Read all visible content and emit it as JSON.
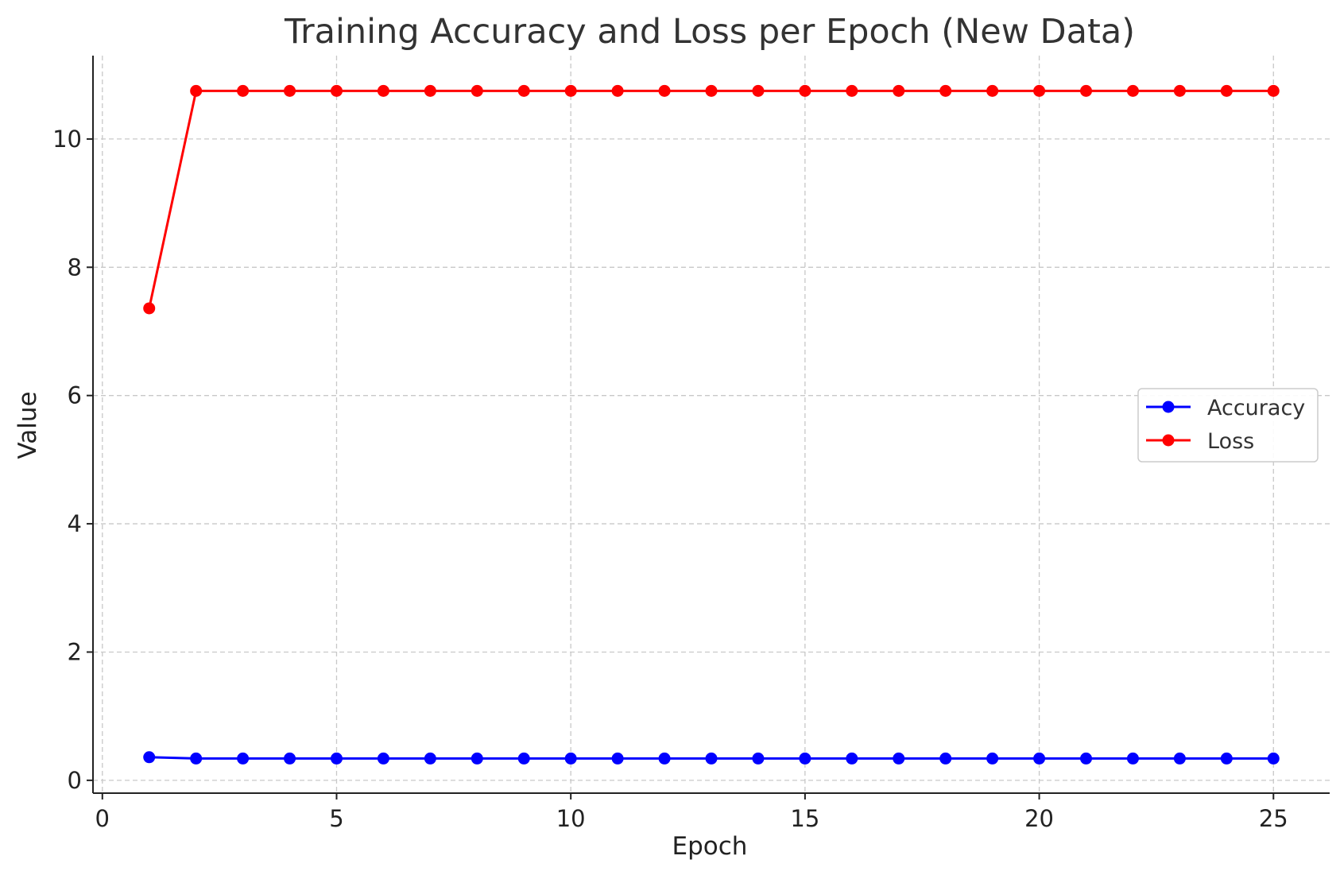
{
  "chart_data": {
    "type": "line",
    "title": "Training Accuracy and Loss per Epoch (New Data)",
    "xlabel": "Epoch",
    "ylabel": "Value",
    "xlim": [
      -0.2,
      26.2
    ],
    "ylim": [
      -0.2,
      11.3
    ],
    "xticks": [
      0,
      5,
      10,
      15,
      20,
      25
    ],
    "yticks": [
      0,
      2,
      4,
      6,
      8,
      10
    ],
    "grid": true,
    "legend_position": "center-right",
    "x": [
      1,
      2,
      3,
      4,
      5,
      6,
      7,
      8,
      9,
      10,
      11,
      12,
      13,
      14,
      15,
      16,
      17,
      18,
      19,
      20,
      21,
      22,
      23,
      24,
      25
    ],
    "series": [
      {
        "name": "Accuracy",
        "color": "#0000ff",
        "values": [
          0.36,
          0.34,
          0.34,
          0.34,
          0.34,
          0.34,
          0.34,
          0.34,
          0.34,
          0.34,
          0.34,
          0.34,
          0.34,
          0.34,
          0.34,
          0.34,
          0.34,
          0.34,
          0.34,
          0.34,
          0.34,
          0.34,
          0.34,
          0.34,
          0.34
        ]
      },
      {
        "name": "Loss",
        "color": "#ff0000",
        "values": [
          7.36,
          10.75,
          10.75,
          10.75,
          10.75,
          10.75,
          10.75,
          10.75,
          10.75,
          10.75,
          10.75,
          10.75,
          10.75,
          10.75,
          10.75,
          10.75,
          10.75,
          10.75,
          10.75,
          10.75,
          10.75,
          10.75,
          10.75,
          10.75,
          10.75
        ]
      }
    ]
  }
}
